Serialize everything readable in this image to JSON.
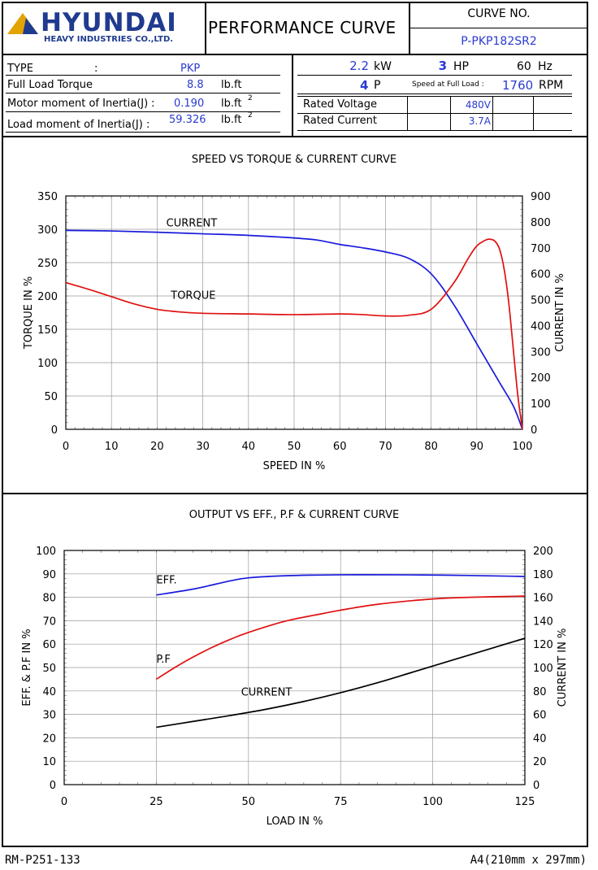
{
  "header": {
    "logo": {
      "brand": "HYUNDAI",
      "subtitle": "HEAVY INDUSTRIES CO.,LTD.",
      "color": "#1f3b8f",
      "triangle_color": "#e3a300"
    },
    "title": "PERFORMANCE CURVE",
    "curve_no_label": "CURVE NO.",
    "curve_no": "P-PKP182SR2"
  },
  "specs_left": [
    {
      "label": "TYPE",
      "sep": ":",
      "value": "PKP",
      "unit": ""
    },
    {
      "label": "Full Load Torque",
      "sep": "",
      "value": "8.8",
      "unit": "lb.ft"
    },
    {
      "label": "Motor moment of Inertia(J)",
      "sep": ":",
      "value": "0.190",
      "unit": "lb.ft",
      "sup": "2"
    },
    {
      "label": "Load moment of Inertia(J)",
      "sep": ":",
      "value": "59.326",
      "unit": "lb.ft",
      "sup": "2"
    }
  ],
  "specs_right": {
    "kw_value": "2.2",
    "kw_unit": "kW",
    "hp_value": "3",
    "hp_unit": "HP",
    "hz_value": "60",
    "hz_unit": "Hz",
    "poles_value": "4",
    "poles_unit": "P",
    "speed_label": "Speed at Full Load :",
    "speed_value": "1760",
    "speed_unit": "RPM",
    "rated_voltage_label": "Rated Voltage",
    "rated_voltage": "480V",
    "rated_current_label": "Rated Current",
    "rated_current": "3.7A"
  },
  "footer": {
    "left": "RM-P251-133",
    "right": "A4(210mm x 297mm)"
  },
  "colors": {
    "blue": "#1a1adc",
    "red": "#e01010",
    "black": "#000000",
    "value_blue": "#2a3ad0"
  },
  "chart_data": [
    {
      "type": "line",
      "title": "SPEED VS TORQUE & CURRENT CURVE",
      "xlabel": "SPEED IN %",
      "ylabel": "TORQUE IN %",
      "y2label": "CURRENT IN %",
      "xlim": [
        0,
        100
      ],
      "ylim": [
        0,
        350
      ],
      "y2lim": [
        0,
        900
      ],
      "xticks": [
        0,
        10,
        20,
        30,
        40,
        50,
        60,
        70,
        80,
        90,
        100
      ],
      "yticks": [
        0,
        50,
        100,
        150,
        200,
        250,
        300,
        350
      ],
      "y2ticks": [
        0,
        100,
        200,
        300,
        400,
        500,
        600,
        700,
        800,
        900
      ],
      "grid": true,
      "series": [
        {
          "name": "CURRENT",
          "axis": "y2",
          "color": "#1a1adc",
          "x": [
            0,
            10,
            20,
            30,
            40,
            50,
            55,
            60,
            65,
            70,
            75,
            80,
            85,
            90,
            95,
            98,
            100
          ],
          "y": [
            767,
            765,
            760,
            754,
            748,
            738,
            730,
            713,
            700,
            684,
            660,
            600,
            480,
            330,
            180,
            90,
            0
          ]
        },
        {
          "name": "TORQUE",
          "axis": "y",
          "color": "#e01010",
          "x": [
            0,
            5,
            10,
            15,
            20,
            25,
            30,
            40,
            50,
            60,
            65,
            70,
            75,
            80,
            85,
            88,
            90,
            92,
            93,
            94,
            95,
            96,
            97,
            98,
            99,
            100
          ],
          "y": [
            220,
            210,
            199,
            188,
            180,
            176,
            174,
            173,
            172,
            173,
            172,
            170,
            171,
            180,
            220,
            255,
            275,
            284,
            285,
            282,
            270,
            240,
            190,
            120,
            50,
            0
          ]
        }
      ],
      "annotations": [
        {
          "text": "CURRENT",
          "x": 22,
          "y": 304
        },
        {
          "text": "TORQUE",
          "x": 23,
          "y": 196
        }
      ]
    },
    {
      "type": "line",
      "title": "OUTPUT VS EFF., P.F & CURRENT CURVE",
      "xlabel": "LOAD IN %",
      "ylabel": "EFF. & P.F IN %",
      "y2label": "CURRENT IN %",
      "xlim": [
        0,
        125
      ],
      "ylim": [
        0,
        100
      ],
      "y2lim": [
        0,
        200
      ],
      "xticks": [
        0,
        25,
        50,
        75,
        100,
        125
      ],
      "yticks": [
        0,
        10,
        20,
        30,
        40,
        50,
        60,
        70,
        80,
        90,
        100
      ],
      "y2ticks": [
        0,
        20,
        40,
        60,
        80,
        100,
        120,
        140,
        160,
        180,
        200
      ],
      "grid": true,
      "series": [
        {
          "name": "EFF.",
          "axis": "y",
          "color": "#1a1adc",
          "x": [
            25,
            35,
            45,
            50,
            60,
            75,
            90,
            100,
            110,
            125
          ],
          "y": [
            81,
            83.5,
            87,
            88.3,
            89.2,
            89.6,
            89.6,
            89.5,
            89.3,
            88.9
          ]
        },
        {
          "name": "P.F",
          "axis": "y",
          "color": "#e01010",
          "x": [
            25,
            30,
            35,
            40,
            45,
            50,
            60,
            70,
            75,
            85,
            100,
            110,
            125
          ],
          "y": [
            45,
            50,
            54.5,
            58.5,
            62,
            65,
            69.8,
            73,
            74.5,
            77,
            79.3,
            80,
            80.5
          ]
        },
        {
          "name": "CURRENT",
          "axis": "y2",
          "color": "#000000",
          "x": [
            25,
            35,
            45,
            55,
            65,
            75,
            85,
            95,
            105,
            115,
            125
          ],
          "y": [
            49,
            54,
            59,
            64.5,
            71,
            78.5,
            87,
            96.5,
            106,
            115.5,
            125
          ]
        }
      ],
      "annotations": [
        {
          "text": "EFF.",
          "x": 25,
          "y": 86
        },
        {
          "text": "P.F",
          "x": 25,
          "y": 52
        },
        {
          "text": "CURRENT",
          "x": 48,
          "y": 38
        }
      ]
    }
  ]
}
